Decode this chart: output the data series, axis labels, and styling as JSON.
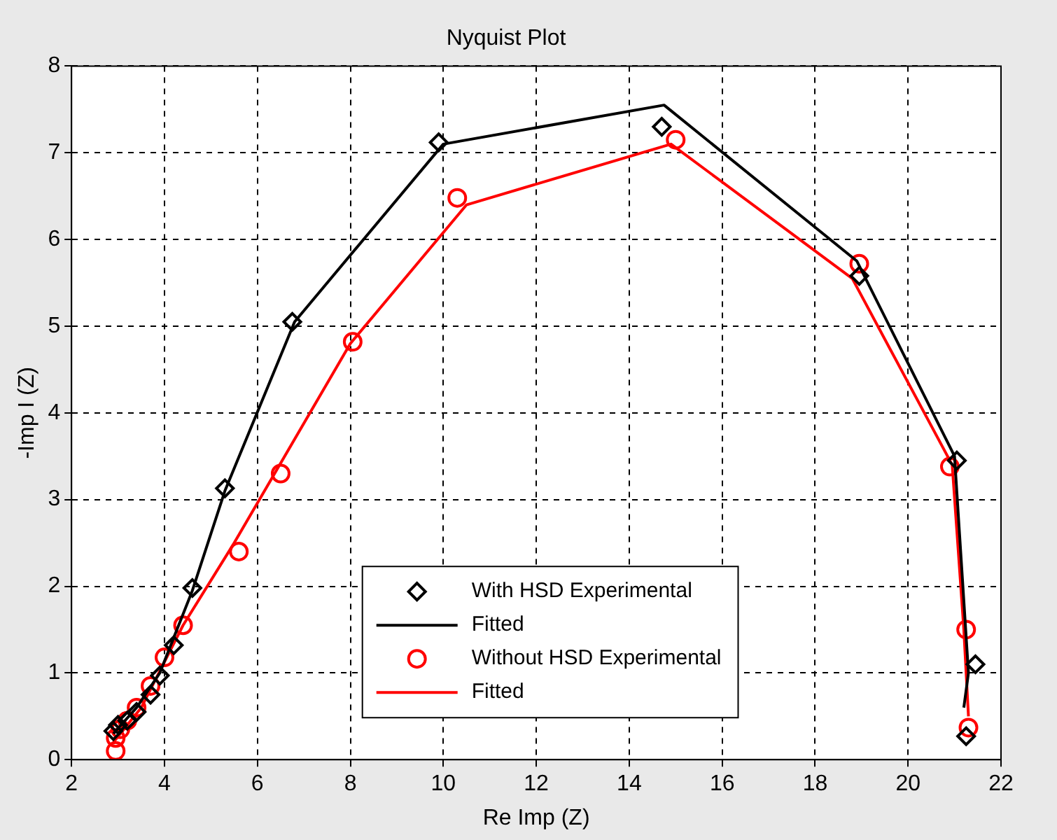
{
  "chart_data": {
    "type": "scatter",
    "title": "Nyquist Plot",
    "xlabel": "Re Imp (Z)",
    "ylabel": "-Imp I (Z)",
    "xlim": [
      2,
      22
    ],
    "xticks": [
      2,
      4,
      6,
      8,
      10,
      12,
      14,
      16,
      18,
      20,
      22
    ],
    "ylim": [
      0,
      8
    ],
    "yticks": [
      0,
      1,
      2,
      3,
      4,
      5,
      6,
      7,
      8
    ],
    "grid": true,
    "legend": "bottom",
    "series": [
      {
        "name": "With HSD Experimental",
        "type": "scatter",
        "marker": "diamond",
        "color": "#000000",
        "x": [
          2.9,
          3.0,
          3.2,
          3.4,
          3.7,
          3.9,
          4.2,
          4.6,
          5.3,
          6.75,
          9.9,
          14.7,
          18.95,
          21.05,
          21.45,
          21.25
        ],
        "values": [
          0.33,
          0.4,
          0.45,
          0.55,
          0.75,
          0.97,
          1.32,
          1.98,
          3.13,
          5.05,
          7.12,
          7.3,
          5.58,
          3.45,
          1.1,
          0.27
        ]
      },
      {
        "name": "Fitted",
        "type": "line",
        "marker": "none",
        "color": "#000000",
        "x": [
          2.9,
          3.4,
          3.9,
          4.6,
          5.3,
          6.8,
          10.0,
          14.75,
          18.9,
          21.0,
          21.3,
          21.2
        ],
        "values": [
          0.3,
          0.6,
          1.0,
          1.95,
          3.1,
          5.05,
          7.1,
          7.55,
          5.75,
          3.5,
          1.0,
          0.6
        ]
      },
      {
        "name": "Without HSD Experimental",
        "type": "scatter",
        "marker": "circle",
        "color": "#ff0000",
        "x": [
          2.95,
          2.95,
          3.05,
          3.2,
          3.4,
          3.7,
          4.0,
          4.4,
          5.6,
          6.5,
          8.05,
          10.3,
          15.0,
          18.95,
          20.9,
          21.25,
          21.3
        ],
        "values": [
          0.1,
          0.25,
          0.35,
          0.45,
          0.6,
          0.85,
          1.18,
          1.55,
          2.4,
          3.3,
          4.82,
          6.48,
          7.15,
          5.72,
          3.38,
          1.5,
          0.37
        ]
      },
      {
        "name": "Fitted",
        "type": "line",
        "marker": "none",
        "color": "#ff0000",
        "x": [
          2.9,
          3.5,
          4.4,
          5.5,
          8.0,
          10.5,
          14.9,
          18.8,
          20.95,
          21.2,
          21.3
        ],
        "values": [
          0.2,
          0.6,
          1.55,
          2.5,
          4.8,
          6.4,
          7.1,
          5.55,
          3.4,
          1.5,
          0.5
        ]
      }
    ]
  }
}
